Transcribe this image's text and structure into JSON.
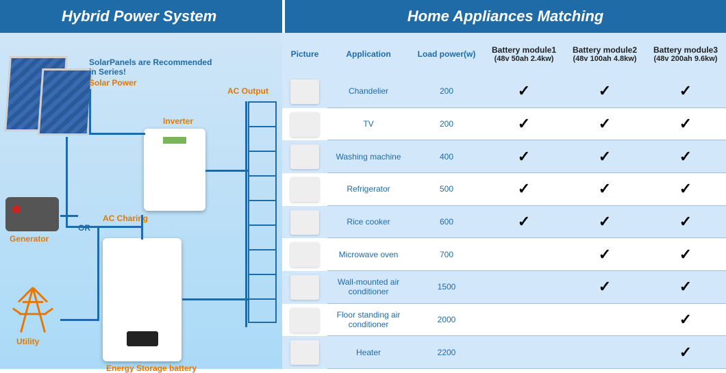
{
  "header": {
    "left": "Hybrid Power System",
    "right": "Home Appliances Matching",
    "bg_color": "#1e6ba8",
    "text_color": "#ffffff"
  },
  "diagram": {
    "note": "SolarPanels are Recommended in Series!",
    "labels": {
      "solar": "Solar Power",
      "inverter": "Inverter",
      "ac_output": "AC Output",
      "ac_charging": "AC Charing",
      "generator": "Generator",
      "utility": "Utility",
      "battery": "Energy Storage battery",
      "or": "OR"
    },
    "label_color": "#e67700",
    "wire_color": "#1e6ba8",
    "bg_gradient": [
      "#cfe5f7",
      "#aadaf7"
    ]
  },
  "table": {
    "headers": {
      "picture": "Picture",
      "application": "Application",
      "load": "Load power(w)",
      "mod1_title": "Battery module1",
      "mod1_sub": "(48v 50ah 2.4kw)",
      "mod2_title": "Battery module2",
      "mod2_sub": "(48v 100ah 4.8kw)",
      "mod3_title": "Battery module3",
      "mod3_sub": "(48v 200ah 9.6kw)"
    },
    "header_bg": "#d3e7fb",
    "header_color": "#1e6ba8",
    "check_glyph": "✓",
    "rows": [
      {
        "app": "Chandelier",
        "load": "200",
        "m1": true,
        "m2": true,
        "m3": true,
        "icon": "chandelier"
      },
      {
        "app": "TV",
        "load": "200",
        "m1": true,
        "m2": true,
        "m3": true,
        "icon": "tv"
      },
      {
        "app": "Washing machine",
        "load": "400",
        "m1": true,
        "m2": true,
        "m3": true,
        "icon": "washing-machine"
      },
      {
        "app": "Refrigerator",
        "load": "500",
        "m1": true,
        "m2": true,
        "m3": true,
        "icon": "refrigerator"
      },
      {
        "app": "Rice cooker",
        "load": "600",
        "m1": true,
        "m2": true,
        "m3": true,
        "icon": "rice-cooker"
      },
      {
        "app": "Microwave oven",
        "load": "700",
        "m1": false,
        "m2": true,
        "m3": true,
        "icon": "microwave"
      },
      {
        "app": "Wall-mounted air conditioner",
        "load": "1500",
        "m1": false,
        "m2": true,
        "m3": true,
        "icon": "wall-ac"
      },
      {
        "app": "Floor standing air conditioner",
        "load": "2000",
        "m1": false,
        "m2": false,
        "m3": true,
        "icon": "floor-ac"
      },
      {
        "app": "Heater",
        "load": "2200",
        "m1": false,
        "m2": false,
        "m3": true,
        "icon": "heater"
      }
    ]
  }
}
